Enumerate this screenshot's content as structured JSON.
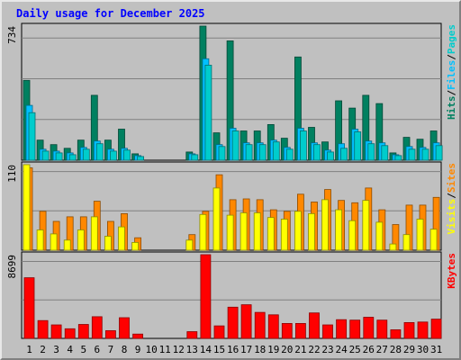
{
  "title": "Daily usage for December 2025",
  "colors": {
    "pages": "#00cccc",
    "files": "#00c0ff",
    "hits": "#008060",
    "sites": "#ffff00",
    "visits": "#ff8800",
    "kbytes": "#ff0000",
    "title": "#0000ff",
    "weekend": "#008040"
  },
  "chart_data": [
    {
      "type": "bar",
      "panel": "hits-files-pages",
      "ylabel_max": "734",
      "legend": [
        "Pages",
        "/",
        "Files",
        "/",
        "Hits"
      ],
      "ylim": [
        0,
        734
      ],
      "x": [
        "1",
        "2",
        "3",
        "4",
        "5",
        "6",
        "7",
        "8",
        "9",
        "10",
        "11",
        "12",
        "13",
        "14",
        "15",
        "16",
        "17",
        "18",
        "19",
        "20",
        "21",
        "22",
        "23",
        "24",
        "25",
        "26",
        "27",
        "28",
        "29",
        "30",
        "31"
      ],
      "series": [
        {
          "name": "Hits",
          "values": [
            437,
            110,
            85,
            65,
            110,
            355,
            110,
            170,
            35,
            0,
            0,
            0,
            45,
            734,
            150,
            653,
            160,
            160,
            195,
            120,
            565,
            180,
            100,
            325,
            285,
            355,
            310,
            40,
            125,
            115,
            160
          ]
        },
        {
          "name": "Files",
          "values": [
            300,
            60,
            50,
            40,
            70,
            105,
            60,
            65,
            25,
            0,
            0,
            0,
            35,
            555,
            85,
            175,
            95,
            95,
            110,
            70,
            175,
            95,
            55,
            90,
            170,
            105,
            95,
            30,
            75,
            70,
            95
          ]
        },
        {
          "name": "Pages",
          "values": [
            260,
            50,
            40,
            30,
            60,
            90,
            50,
            55,
            20,
            0,
            0,
            0,
            30,
            520,
            75,
            160,
            85,
            85,
            100,
            60,
            160,
            85,
            45,
            65,
            155,
            90,
            80,
            25,
            60,
            60,
            80
          ]
        }
      ]
    },
    {
      "type": "bar",
      "panel": "visits-sites",
      "ylabel_max": "110",
      "legend": [
        "Sites",
        "/",
        "Visits"
      ],
      "ylim": [
        0,
        110
      ],
      "x": [
        "1",
        "2",
        "3",
        "4",
        "5",
        "6",
        "7",
        "8",
        "9",
        "10",
        "11",
        "12",
        "13",
        "14",
        "15",
        "16",
        "17",
        "18",
        "19",
        "20",
        "21",
        "22",
        "23",
        "24",
        "25",
        "26",
        "27",
        "28",
        "29",
        "30",
        "31"
      ],
      "series": [
        {
          "name": "Visits",
          "values": [
            106,
            50,
            37,
            43,
            43,
            63,
            37,
            47,
            16,
            0,
            0,
            0,
            20,
            50,
            97,
            65,
            66,
            65,
            52,
            50,
            72,
            62,
            78,
            64,
            61,
            80,
            52,
            33,
            58,
            58,
            68
          ]
        },
        {
          "name": "Sites",
          "values": [
            110,
            26,
            21,
            13,
            26,
            43,
            18,
            30,
            10,
            0,
            0,
            0,
            13,
            46,
            80,
            45,
            48,
            48,
            42,
            40,
            50,
            47,
            65,
            52,
            38,
            64,
            36,
            8,
            20,
            40,
            27
          ]
        }
      ]
    },
    {
      "type": "bar",
      "panel": "kbytes",
      "ylabel_max": "8699",
      "legend": [
        "KBytes"
      ],
      "ylim": [
        0,
        8699
      ],
      "x": [
        "1",
        "2",
        "3",
        "4",
        "5",
        "6",
        "7",
        "8",
        "9",
        "10",
        "11",
        "12",
        "13",
        "14",
        "15",
        "16",
        "17",
        "18",
        "19",
        "20",
        "21",
        "22",
        "23",
        "24",
        "25",
        "26",
        "27",
        "28",
        "29",
        "30",
        "31"
      ],
      "series": [
        {
          "name": "KBytes",
          "values": [
            6300,
            1850,
            1400,
            1000,
            1450,
            2250,
            800,
            2150,
            450,
            0,
            0,
            0,
            700,
            8699,
            1300,
            3250,
            3500,
            2700,
            2450,
            1550,
            1550,
            2650,
            1400,
            1950,
            1900,
            2200,
            1900,
            900,
            1650,
            1700,
            2000
          ]
        }
      ]
    }
  ]
}
